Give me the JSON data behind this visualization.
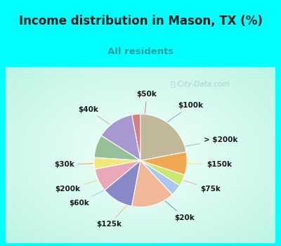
{
  "title": "Income distribution in Mason, TX (%)",
  "subtitle": "All residents",
  "labels": [
    "$50k",
    "$100k",
    "> $200k",
    "$150k",
    "$75k",
    "$20k",
    "$125k",
    "$60k",
    "$200k",
    "$30k",
    "$40k"
  ],
  "sizes": [
    3,
    13,
    8,
    4,
    8,
    11,
    15,
    4,
    4,
    8,
    22
  ],
  "colors": [
    "#d88080",
    "#a898d0",
    "#98c098",
    "#f0e878",
    "#e8a8b8",
    "#8888c8",
    "#f0b898",
    "#a8c8f0",
    "#c8e870",
    "#f0a850",
    "#c0b898"
  ],
  "line_colors": [
    "#d88080",
    "#a898d0",
    "#98c098",
    "#f0e878",
    "#e8a8b8",
    "#8888c8",
    "#f0b898",
    "#a8c8f0",
    "#c8e870",
    "#f0a850",
    "#c0b898"
  ],
  "bg_cyan": "#00ffff",
  "bg_chart_outer": "#b8f0e8",
  "bg_chart_inner": "#f0fff8",
  "title_color": "#202020",
  "subtitle_color": "#20a0a0",
  "watermark": "City-Data.com",
  "startangle": 90,
  "label_fontsize": 7.5
}
